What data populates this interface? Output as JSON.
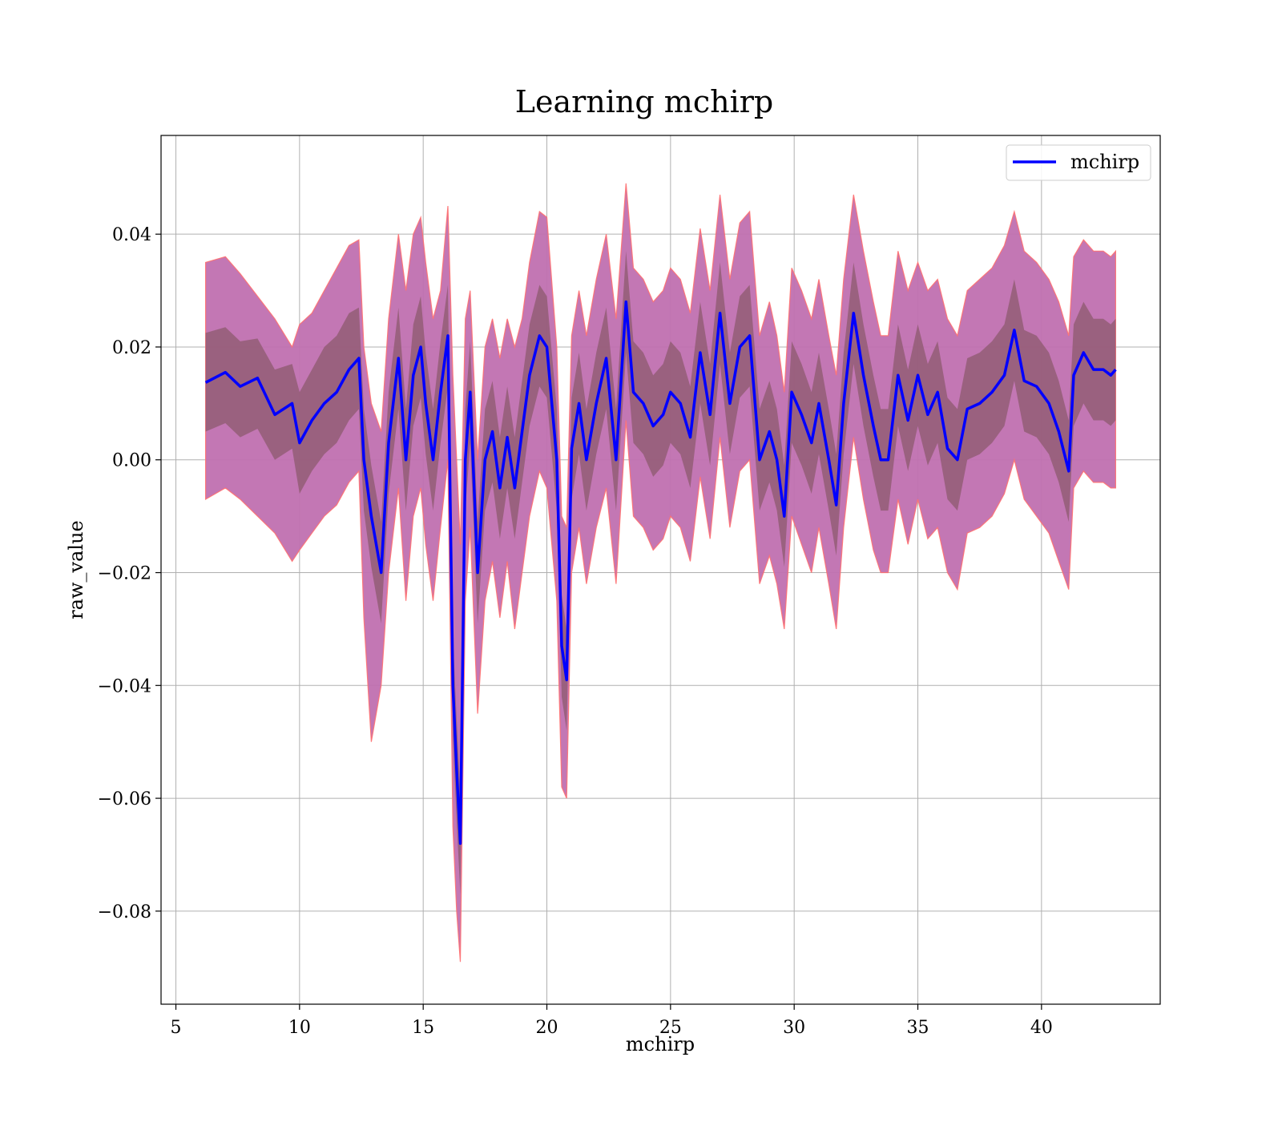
{
  "chart_data": {
    "type": "line",
    "title": "Learning mchirp",
    "xlabel": "mchirp",
    "ylabel": "raw_value",
    "xlim": [
      4.4,
      44.8
    ],
    "ylim": [
      -0.0965,
      0.0575
    ],
    "x_ticks": [
      5,
      10,
      15,
      20,
      25,
      30,
      35,
      40
    ],
    "x_tick_labels": [
      "5",
      "10",
      "15",
      "20",
      "25",
      "30",
      "35",
      "40"
    ],
    "y_ticks": [
      0.04,
      0.02,
      0.0,
      -0.02,
      -0.04,
      -0.06,
      -0.08
    ],
    "y_tick_labels": [
      "0.04",
      "0.02",
      "0.00",
      "−0.02",
      "−0.04",
      "−0.06",
      "−0.08"
    ],
    "grid": true,
    "legend_position": "top-right",
    "colors": {
      "line": "#0000ff",
      "outer_band": "#c080c0",
      "outer_band_edge": "#ff6060",
      "inner_band": "#a06880"
    },
    "series": [
      {
        "name": "mchirp",
        "x": [
          6.2,
          7.0,
          7.6,
          8.3,
          9.0,
          9.7,
          10.0,
          10.5,
          11.0,
          11.5,
          12.0,
          12.4,
          12.6,
          12.9,
          13.3,
          13.6,
          14.0,
          14.3,
          14.6,
          14.9,
          15.1,
          15.4,
          15.7,
          16.0,
          16.2,
          16.35,
          16.5,
          16.7,
          16.9,
          17.2,
          17.5,
          17.8,
          18.1,
          18.4,
          18.7,
          19.0,
          19.3,
          19.7,
          20.0,
          20.4,
          20.6,
          20.8,
          21.0,
          21.3,
          21.6,
          22.0,
          22.4,
          22.8,
          23.2,
          23.5,
          23.9,
          24.3,
          24.7,
          25.0,
          25.4,
          25.8,
          26.2,
          26.6,
          27.0,
          27.4,
          27.8,
          28.2,
          28.6,
          29.0,
          29.3,
          29.6,
          29.9,
          30.3,
          30.7,
          31.0,
          31.4,
          31.7,
          32.0,
          32.4,
          32.8,
          33.2,
          33.5,
          33.8,
          34.2,
          34.6,
          35.0,
          35.4,
          35.8,
          36.2,
          36.6,
          37.0,
          37.5,
          38.0,
          38.5,
          38.9,
          39.3,
          39.8,
          40.3,
          40.7,
          41.1,
          41.3,
          41.7,
          42.1,
          42.5,
          42.8,
          43.0
        ],
        "values": [
          0.0137,
          0.0155,
          0.013,
          0.0145,
          0.008,
          0.01,
          0.003,
          0.007,
          0.01,
          0.012,
          0.016,
          0.018,
          0.0,
          -0.01,
          -0.02,
          0.003,
          0.018,
          0.0,
          0.015,
          0.02,
          0.01,
          0.0,
          0.012,
          0.022,
          -0.04,
          -0.055,
          -0.068,
          0.0,
          0.012,
          -0.02,
          0.0,
          0.005,
          -0.005,
          0.004,
          -0.005,
          0.005,
          0.015,
          0.022,
          0.02,
          0.0,
          -0.033,
          -0.039,
          0.002,
          0.01,
          0.0,
          0.01,
          0.018,
          0.0,
          0.028,
          0.012,
          0.01,
          0.006,
          0.008,
          0.012,
          0.01,
          0.004,
          0.019,
          0.008,
          0.026,
          0.01,
          0.02,
          0.022,
          0.0,
          0.005,
          0.0,
          -0.01,
          0.012,
          0.008,
          0.003,
          0.01,
          0.0,
          -0.008,
          0.01,
          0.026,
          0.015,
          0.006,
          0.0,
          0.0,
          0.015,
          0.007,
          0.015,
          0.008,
          0.012,
          0.002,
          0.0,
          0.009,
          0.01,
          0.012,
          0.015,
          0.023,
          0.014,
          0.013,
          0.01,
          0.005,
          -0.002,
          0.015,
          0.019,
          0.016,
          0.016,
          0.015,
          0.016
        ]
      }
    ],
    "outer_band": {
      "upper": [
        0.035,
        0.036,
        0.033,
        0.029,
        0.025,
        0.02,
        0.024,
        0.026,
        0.03,
        0.034,
        0.038,
        0.039,
        0.02,
        0.01,
        0.005,
        0.025,
        0.04,
        0.03,
        0.04,
        0.043,
        0.035,
        0.025,
        0.03,
        0.045,
        0.015,
        0.0,
        -0.015,
        0.025,
        0.03,
        0.0,
        0.02,
        0.025,
        0.018,
        0.025,
        0.02,
        0.025,
        0.035,
        0.044,
        0.043,
        0.02,
        -0.01,
        -0.012,
        0.022,
        0.03,
        0.022,
        0.032,
        0.04,
        0.025,
        0.049,
        0.034,
        0.032,
        0.028,
        0.03,
        0.034,
        0.032,
        0.026,
        0.041,
        0.03,
        0.047,
        0.032,
        0.042,
        0.044,
        0.022,
        0.028,
        0.022,
        0.012,
        0.034,
        0.03,
        0.025,
        0.032,
        0.022,
        0.015,
        0.032,
        0.047,
        0.037,
        0.028,
        0.022,
        0.022,
        0.037,
        0.03,
        0.035,
        0.03,
        0.032,
        0.025,
        0.022,
        0.03,
        0.032,
        0.034,
        0.038,
        0.044,
        0.037,
        0.035,
        0.032,
        0.028,
        0.022,
        0.036,
        0.039,
        0.037,
        0.037,
        0.036,
        0.037
      ],
      "lower": [
        -0.007,
        -0.005,
        -0.007,
        -0.01,
        -0.013,
        -0.018,
        -0.016,
        -0.013,
        -0.01,
        -0.008,
        -0.004,
        -0.002,
        -0.028,
        -0.05,
        -0.04,
        -0.02,
        -0.005,
        -0.025,
        -0.01,
        -0.005,
        -0.015,
        -0.025,
        -0.012,
        -0.0,
        -0.065,
        -0.08,
        -0.089,
        -0.025,
        -0.012,
        -0.045,
        -0.025,
        -0.018,
        -0.028,
        -0.018,
        -0.03,
        -0.02,
        -0.01,
        -0.002,
        -0.005,
        -0.025,
        -0.058,
        -0.06,
        -0.02,
        -0.012,
        -0.022,
        -0.012,
        -0.005,
        -0.022,
        0.007,
        -0.01,
        -0.012,
        -0.016,
        -0.014,
        -0.01,
        -0.012,
        -0.018,
        -0.003,
        -0.014,
        0.004,
        -0.012,
        -0.002,
        0.0,
        -0.022,
        -0.017,
        -0.022,
        -0.03,
        -0.01,
        -0.015,
        -0.02,
        -0.012,
        -0.022,
        -0.03,
        -0.012,
        0.004,
        -0.007,
        -0.016,
        -0.02,
        -0.02,
        -0.007,
        -0.015,
        -0.007,
        -0.014,
        -0.012,
        -0.02,
        -0.023,
        -0.013,
        -0.012,
        -0.01,
        -0.006,
        0.0,
        -0.007,
        -0.01,
        -0.013,
        -0.018,
        -0.023,
        -0.005,
        -0.002,
        -0.004,
        -0.004,
        -0.005,
        -0.005
      ]
    },
    "inner_band": {
      "upper": [
        0.0225,
        0.0235,
        0.021,
        0.0215,
        0.016,
        0.017,
        0.012,
        0.016,
        0.02,
        0.022,
        0.026,
        0.027,
        0.009,
        -0.001,
        -0.011,
        0.012,
        0.027,
        0.009,
        0.024,
        0.029,
        0.019,
        0.009,
        0.021,
        0.031,
        -0.031,
        -0.046,
        -0.059,
        0.009,
        0.021,
        -0.011,
        0.009,
        0.014,
        0.004,
        0.013,
        0.004,
        0.014,
        0.024,
        0.031,
        0.029,
        0.009,
        -0.024,
        -0.03,
        0.011,
        0.019,
        0.009,
        0.019,
        0.027,
        0.009,
        0.037,
        0.021,
        0.019,
        0.015,
        0.017,
        0.021,
        0.019,
        0.013,
        0.028,
        0.017,
        0.035,
        0.019,
        0.029,
        0.031,
        0.009,
        0.014,
        0.009,
        -0.001,
        0.021,
        0.017,
        0.012,
        0.019,
        0.009,
        0.001,
        0.019,
        0.035,
        0.024,
        0.015,
        0.009,
        0.009,
        0.024,
        0.016,
        0.024,
        0.017,
        0.021,
        0.011,
        0.009,
        0.018,
        0.019,
        0.021,
        0.024,
        0.032,
        0.023,
        0.022,
        0.019,
        0.014,
        0.007,
        0.024,
        0.028,
        0.025,
        0.025,
        0.024,
        0.025
      ],
      "lower": [
        0.005,
        0.0065,
        0.004,
        0.0055,
        0.0,
        0.002,
        -0.006,
        -0.002,
        0.001,
        0.003,
        0.007,
        0.009,
        -0.009,
        -0.019,
        -0.029,
        -0.006,
        0.009,
        -0.009,
        0.006,
        0.011,
        0.001,
        -0.009,
        0.003,
        0.013,
        -0.049,
        -0.064,
        -0.077,
        -0.009,
        0.003,
        -0.029,
        -0.009,
        -0.004,
        -0.014,
        -0.005,
        -0.014,
        -0.004,
        0.006,
        0.013,
        0.011,
        -0.009,
        -0.042,
        -0.048,
        -0.007,
        0.001,
        -0.009,
        0.001,
        0.009,
        -0.009,
        0.019,
        0.003,
        0.001,
        -0.003,
        -0.001,
        0.003,
        0.001,
        -0.005,
        0.01,
        -0.001,
        0.017,
        0.001,
        0.011,
        0.013,
        -0.009,
        -0.004,
        -0.009,
        -0.019,
        0.003,
        -0.001,
        -0.006,
        0.001,
        -0.009,
        -0.017,
        0.001,
        0.017,
        0.006,
        -0.003,
        -0.009,
        -0.009,
        0.006,
        -0.002,
        0.006,
        -0.001,
        0.003,
        -0.007,
        -0.009,
        0.0,
        0.001,
        0.003,
        0.006,
        0.014,
        0.005,
        0.004,
        0.001,
        -0.004,
        -0.011,
        0.006,
        0.01,
        0.007,
        0.007,
        0.006,
        0.007
      ]
    }
  }
}
